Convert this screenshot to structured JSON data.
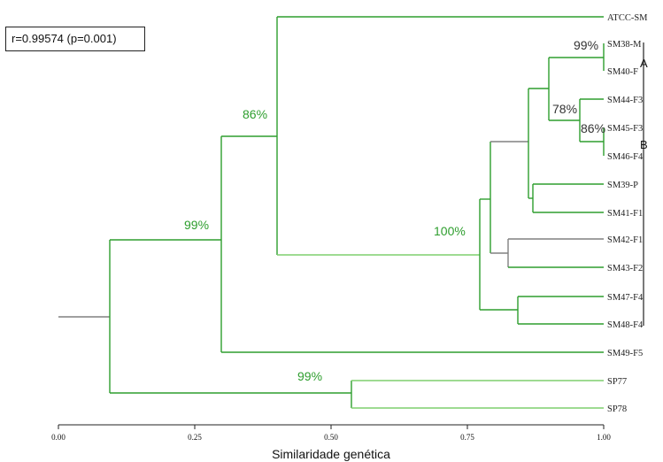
{
  "correlation": "r=0.99574 (p=0.001)",
  "axis": {
    "label": "Similaridade genética",
    "ticks": [
      "0.00",
      "0.25",
      "0.50",
      "0.75",
      "1.00"
    ]
  },
  "leaves": [
    "ATCC-SM",
    "SM38-M",
    "SM40-F",
    "SM44-F3",
    "SM45-F3",
    "SM46-F4",
    "SM39-P",
    "SM41-F1",
    "SM42-F1",
    "SM43-F2",
    "SM47-F4",
    "SM48-F4",
    "SM49-F5",
    "SP77",
    "SP78"
  ],
  "bootstrap": {
    "b1": "86%",
    "b2": "99%",
    "b3": "100%",
    "b4": "99%",
    "b5": "99%",
    "b6": "78%",
    "b7": "86%"
  },
  "groups": {
    "a": "A",
    "b": "B"
  },
  "colors": {
    "green": "#2e9e2e",
    "light_green": "#7fcf6f",
    "gray": "#808080",
    "dark": "#222222"
  }
}
